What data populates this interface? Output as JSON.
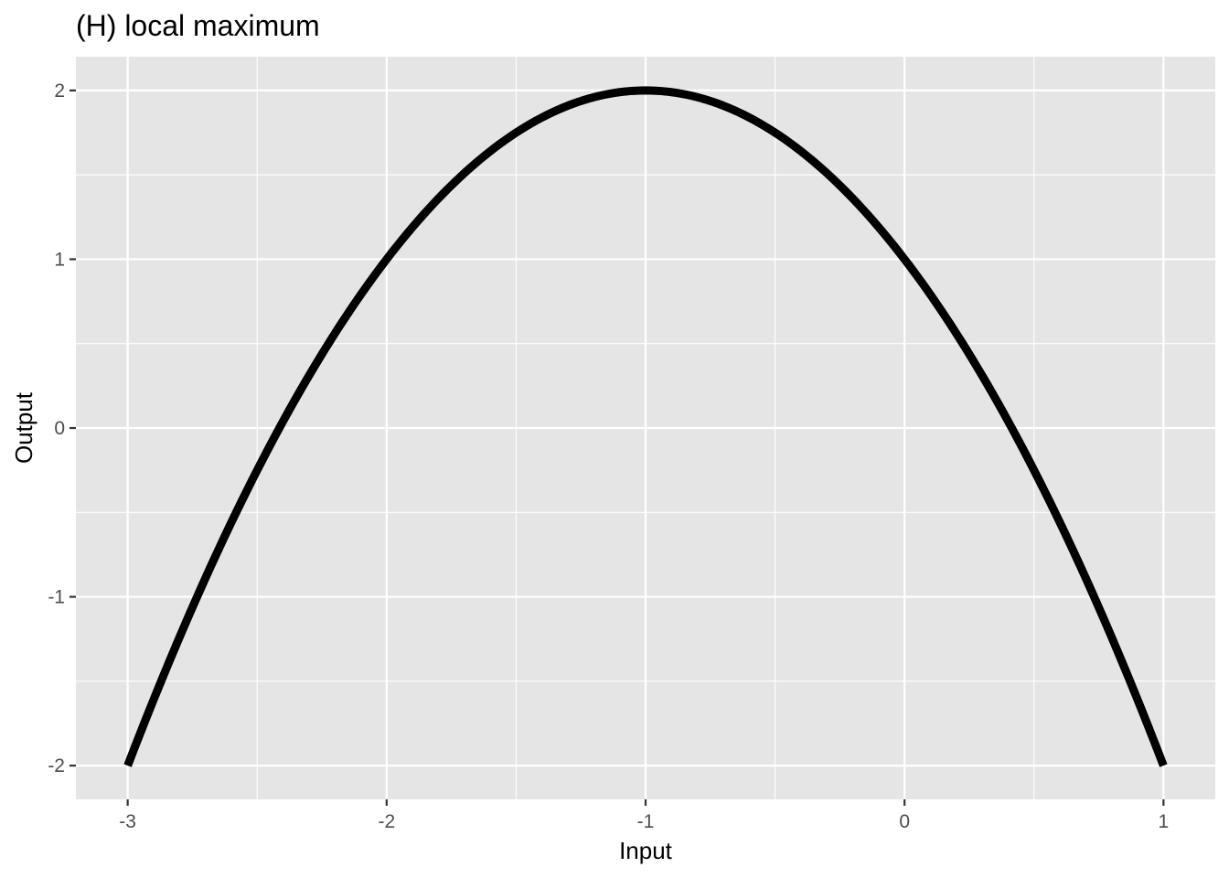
{
  "chart_data": {
    "type": "line",
    "title": "(H) local maximum",
    "xlabel": "Input",
    "ylabel": "Output",
    "xlim": [
      -3.2,
      1.2
    ],
    "ylim": [
      -2.2,
      2.2
    ],
    "x_ticks": [
      -3,
      -2,
      -1,
      0,
      1
    ],
    "x_tick_labels": [
      "-3",
      "-2",
      "-1",
      "0",
      "1"
    ],
    "y_ticks": [
      -2,
      -1,
      0,
      1,
      2
    ],
    "y_tick_labels": [
      "-2",
      "-1",
      "0",
      "1",
      "2"
    ],
    "grid": true,
    "colors": {
      "panel": "#e5e5e5",
      "grid": "#ffffff",
      "line": "#000000",
      "tick_text": "#4d4d4d"
    },
    "series": [
      {
        "x": [
          -3,
          -2.8,
          -2.6,
          -2.4,
          -2.2,
          -2,
          -1.8,
          -1.6,
          -1.4,
          -1.2,
          -1,
          -0.8,
          -0.6,
          -0.4,
          -0.2,
          0,
          0.2,
          0.4,
          0.6,
          0.8,
          1
        ],
        "y": [
          -2,
          -1.24,
          -0.56,
          0.04,
          0.56,
          1,
          1.36,
          1.64,
          1.84,
          1.96,
          2,
          1.96,
          1.84,
          1.64,
          1.36,
          1,
          0.56,
          0.04,
          -0.56,
          -1.24,
          -2
        ]
      }
    ]
  }
}
